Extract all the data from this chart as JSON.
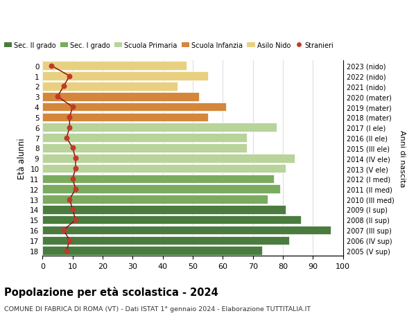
{
  "ages": [
    0,
    1,
    2,
    3,
    4,
    5,
    6,
    7,
    8,
    9,
    10,
    11,
    12,
    13,
    14,
    15,
    16,
    17,
    18
  ],
  "years": [
    "2023 (nido)",
    "2022 (nido)",
    "2021 (nido)",
    "2020 (mater)",
    "2019 (mater)",
    "2018 (mater)",
    "2017 (I ele)",
    "2016 (II ele)",
    "2015 (III ele)",
    "2014 (IV ele)",
    "2013 (V ele)",
    "2012 (I med)",
    "2011 (II med)",
    "2010 (III med)",
    "2009 (I sup)",
    "2008 (II sup)",
    "2007 (III sup)",
    "2006 (IV sup)",
    "2005 (V sup)"
  ],
  "bar_values": [
    48,
    55,
    45,
    52,
    61,
    55,
    78,
    68,
    68,
    84,
    81,
    77,
    79,
    75,
    81,
    86,
    96,
    82,
    73
  ],
  "stranieri": [
    3,
    9,
    7,
    5,
    10,
    9,
    9,
    8,
    10,
    11,
    11,
    10,
    11,
    9,
    10,
    11,
    7,
    9,
    8
  ],
  "bar_colors": [
    "#e8d080",
    "#e8d080",
    "#e8d080",
    "#d4863a",
    "#d4863a",
    "#d4863a",
    "#b8d49a",
    "#b8d49a",
    "#b8d49a",
    "#b8d49a",
    "#b8d49a",
    "#7aab5e",
    "#7aab5e",
    "#7aab5e",
    "#4a7c3f",
    "#4a7c3f",
    "#4a7c3f",
    "#4a7c3f",
    "#4a7c3f"
  ],
  "legend_labels": [
    "Sec. II grado",
    "Sec. I grado",
    "Scuola Primaria",
    "Scuola Infanzia",
    "Asilo Nido",
    "Stranieri"
  ],
  "legend_colors": [
    "#4a7c3f",
    "#7aab5e",
    "#b8d49a",
    "#d4863a",
    "#e8d080",
    "#c0392b"
  ],
  "stranieri_color": "#c0392b",
  "stranieri_line_color": "#8b0000",
  "title": "Popolazione per età scolastica - 2024",
  "subtitle": "COMUNE DI FABRICA DI ROMA (VT) - Dati ISTAT 1° gennaio 2024 - Elaborazione TUTTITALIA.IT",
  "ylabel_left": "Età alunni",
  "ylabel_right": "Anni di nascita",
  "xlim": [
    0,
    100
  ],
  "xticks": [
    0,
    10,
    20,
    30,
    40,
    50,
    60,
    70,
    80,
    90,
    100
  ],
  "bg_color": "#ffffff",
  "grid_color": "#dddddd"
}
